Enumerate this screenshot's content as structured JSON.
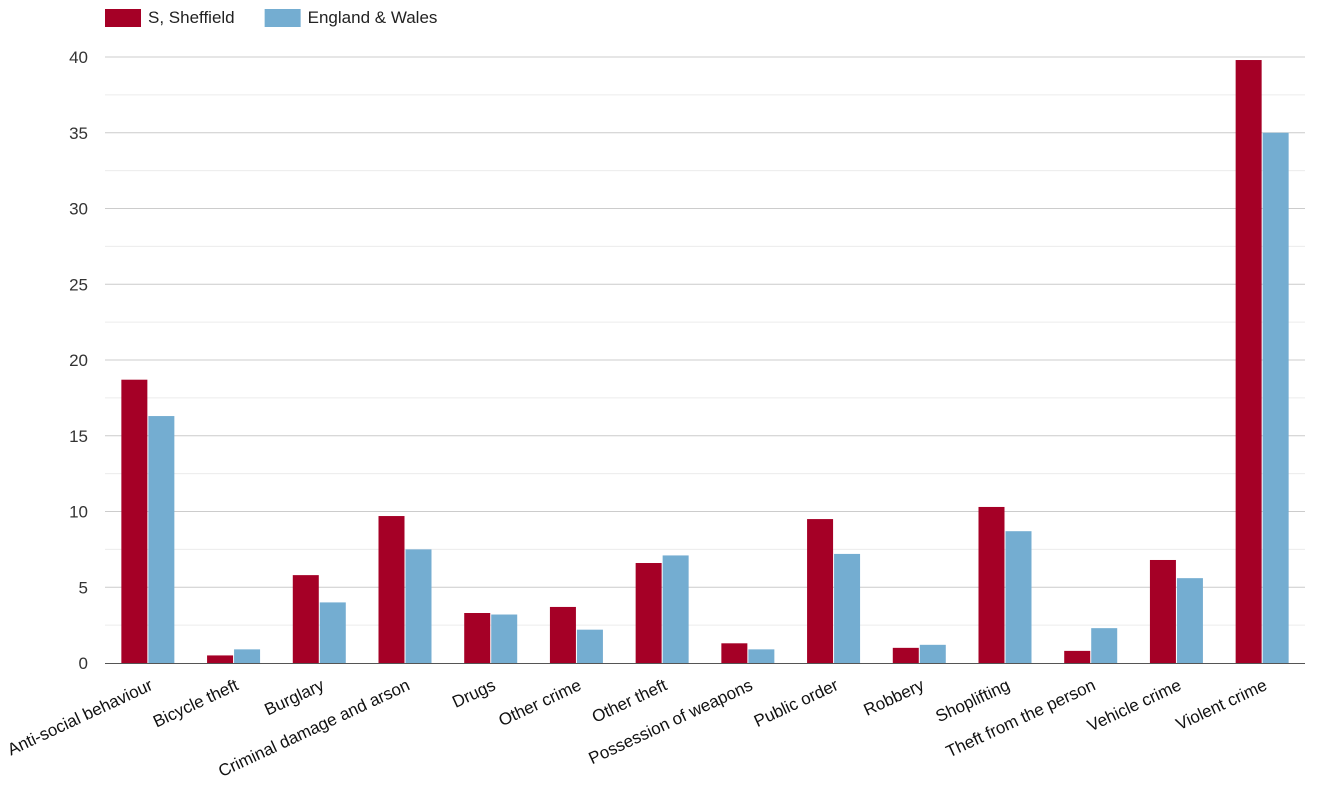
{
  "chart_data": {
    "type": "bar",
    "title": "",
    "xlabel": "",
    "ylabel": "",
    "categories": [
      "Anti-social behaviour",
      "Bicycle theft",
      "Burglary",
      "Criminal damage and arson",
      "Drugs",
      "Other crime",
      "Other theft",
      "Possession of weapons",
      "Public order",
      "Robbery",
      "Shoplifting",
      "Theft from the person",
      "Vehicle crime",
      "Violent crime"
    ],
    "series": [
      {
        "name": "S, Sheffield",
        "color": "#a50026",
        "values": [
          18.7,
          0.5,
          5.8,
          9.7,
          3.3,
          3.7,
          6.6,
          1.3,
          9.5,
          1.0,
          10.3,
          0.8,
          6.8,
          39.8
        ]
      },
      {
        "name": "England & Wales",
        "color": "#74add1",
        "values": [
          16.3,
          0.9,
          4.0,
          7.5,
          3.2,
          2.2,
          7.1,
          0.9,
          7.2,
          1.2,
          8.7,
          2.3,
          5.6,
          35.0
        ]
      }
    ],
    "ylim": [
      0,
      40
    ],
    "yticks": [
      0,
      5,
      10,
      15,
      20,
      25,
      30,
      35,
      40
    ],
    "grid": true,
    "legend_position": "top-left"
  }
}
